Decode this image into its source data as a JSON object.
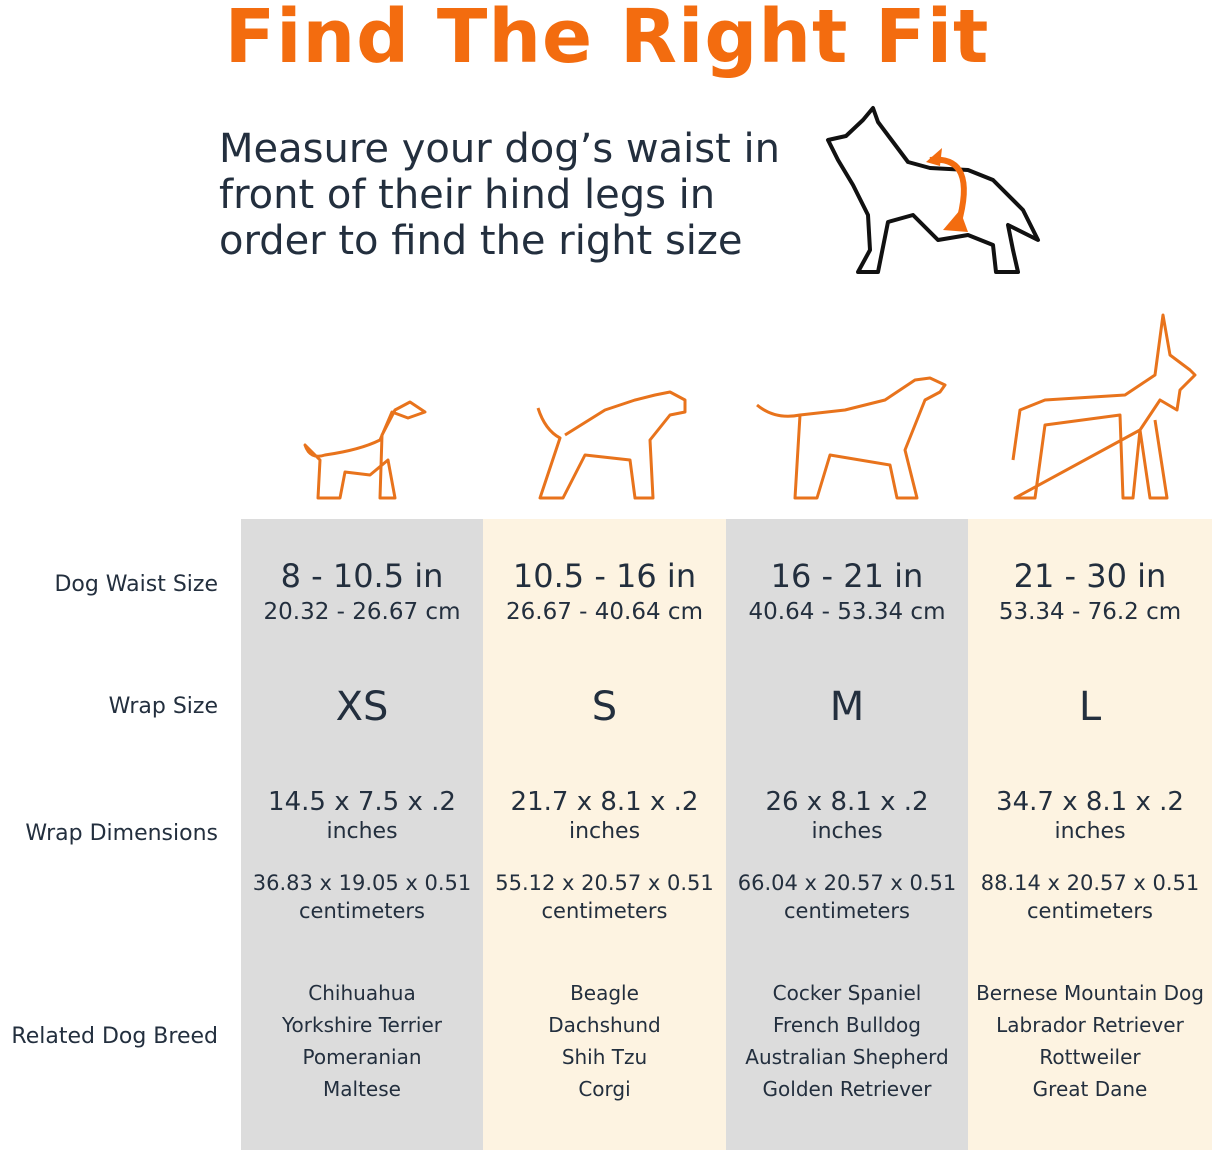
{
  "title": "Find The Right Fit",
  "instruction": "Measure your dog’s waist in front of their hind legs in order to find the right size",
  "colors": {
    "accent": "#f36c0f",
    "text": "#232f3e",
    "gray_column": "#dcdcdc",
    "cream_column": "#fdf3e1"
  },
  "row_labels": {
    "waist": "Dog Waist Size",
    "wrap_size": "Wrap Size",
    "dimensions": "Wrap Dimensions",
    "breeds": "Related Dog Breed"
  },
  "columns": [
    {
      "waist_in": "8 - 10.5 in",
      "waist_cm": "20.32 - 26.67 cm",
      "size": "XS",
      "dim_in": "14.5 x 7.5 x .2",
      "dim_in_unit": "inches",
      "dim_cm": "36.83 x 19.05 x 0.51",
      "dim_cm_unit": "centimeters",
      "breeds": [
        "Chihuahua",
        "Yorkshire Terrier",
        "Pomeranian",
        "Maltese"
      ]
    },
    {
      "waist_in": "10.5 - 16 in",
      "waist_cm": "26.67 - 40.64 cm",
      "size": "S",
      "dim_in": "21.7 x 8.1 x .2",
      "dim_in_unit": "inches",
      "dim_cm": "55.12 x 20.57 x 0.51",
      "dim_cm_unit": "centimeters",
      "breeds": [
        "Beagle",
        "Dachshund",
        "Shih Tzu",
        "Corgi"
      ]
    },
    {
      "waist_in": "16 - 21 in",
      "waist_cm": "40.64 - 53.34 cm",
      "size": "M",
      "dim_in": "26 x 8.1 x .2",
      "dim_in_unit": "inches",
      "dim_cm": "66.04 x 20.57 x 0.51",
      "dim_cm_unit": "centimeters",
      "breeds": [
        "Cocker Spaniel",
        "French Bulldog",
        "Australian Shepherd",
        "Golden Retriever"
      ]
    },
    {
      "waist_in": "21 - 30 in",
      "waist_cm": "53.34 - 76.2 cm",
      "size": "L",
      "dim_in": "34.7 x 8.1 x .2",
      "dim_in_unit": "inches",
      "dim_cm": "88.14 x 20.57 x 0.51",
      "dim_cm_unit": "centimeters",
      "breeds": [
        "Bernese Mountain Dog",
        "Labrador Retriever",
        "Rottweiler",
        "Great Dane"
      ]
    }
  ]
}
